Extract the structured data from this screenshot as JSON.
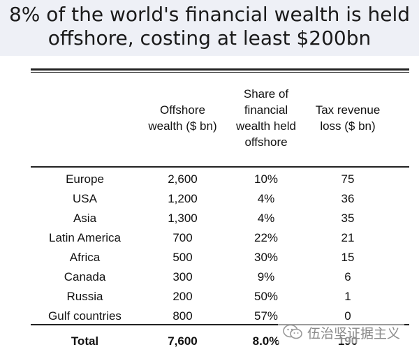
{
  "title": {
    "line1": "8% of the world's financial wealth is held",
    "line2": "offshore, costing at least $200bn"
  },
  "table": {
    "headers": [
      "",
      "Offshore\nwealth ($ bn)",
      "Share of\nfinancial\nwealth held\noffshore",
      "Tax revenue\nloss ($ bn)"
    ],
    "rows": [
      [
        "Europe",
        "2,600",
        "10%",
        "75"
      ],
      [
        "USA",
        "1,200",
        "4%",
        "36"
      ],
      [
        "Asia",
        "1,300",
        "4%",
        "35"
      ],
      [
        "Latin America",
        "700",
        "22%",
        "21"
      ],
      [
        "Africa",
        "500",
        "30%",
        "15"
      ],
      [
        "Canada",
        "300",
        "9%",
        "6"
      ],
      [
        "Russia",
        "200",
        "50%",
        "1"
      ],
      [
        "Gulf countries",
        "800",
        "57%",
        "0"
      ]
    ],
    "total": [
      "Total",
      "7,600",
      "8.0%",
      "190"
    ]
  },
  "watermark": {
    "text": "伍治坚证据主义",
    "icon": "wechat-icon",
    "color": "#8a8a8a"
  }
}
